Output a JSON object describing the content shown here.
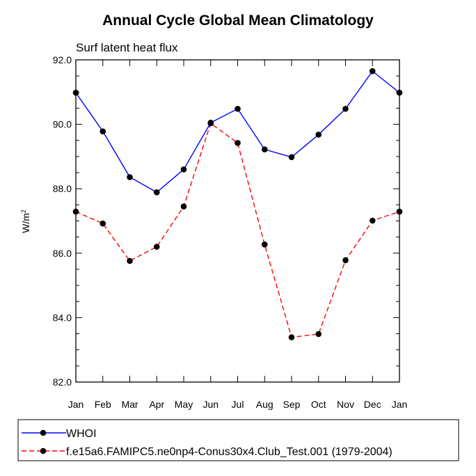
{
  "chart_data": {
    "type": "line",
    "title": "Annual Cycle Global Mean Climatology",
    "subtitle": "Surf latent heat flux",
    "ylabel": "W/m",
    "ylabel_sup": "2",
    "xlabel": "",
    "categories": [
      "Jan",
      "Feb",
      "Mar",
      "Apr",
      "May",
      "Jun",
      "Jul",
      "Aug",
      "Sep",
      "Oct",
      "Nov",
      "Dec",
      "Jan"
    ],
    "ylim": [
      82.0,
      92.0
    ],
    "yticks": [
      "82.0",
      "84.0",
      "86.0",
      "88.0",
      "90.0",
      "92.0"
    ],
    "grid": false,
    "legend_position": "bottom",
    "series": [
      {
        "name": "WHOI",
        "color": "#0000ff",
        "dash": "solid",
        "values": [
          90.98,
          89.78,
          88.36,
          87.89,
          88.6,
          90.05,
          90.48,
          89.22,
          88.98,
          89.68,
          90.48,
          91.65,
          90.98
        ]
      },
      {
        "name": "f.e15a6.FAMIPC5.ne0np4-Conus30x4.Club_Test.001 (1979-2004)",
        "color": "#ff0000",
        "dash": "dashed",
        "values": [
          87.29,
          86.92,
          85.76,
          86.2,
          87.45,
          90.03,
          89.42,
          86.27,
          83.39,
          83.49,
          85.78,
          87.01,
          87.29
        ]
      }
    ]
  }
}
